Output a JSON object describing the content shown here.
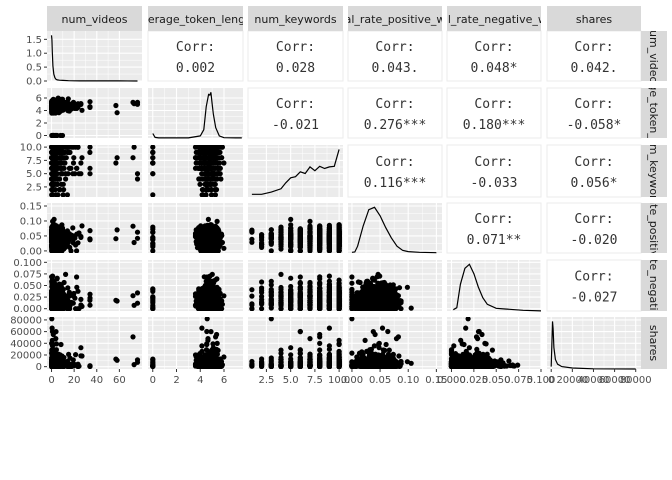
{
  "chart_data": {
    "type": "scatter-matrix",
    "variables": [
      "num_videos",
      "average_token_length",
      "num_keywords",
      "global_rate_positive_words",
      "global_rate_negative_words",
      "shares"
    ],
    "strip_labels": [
      "num_videos",
      "average_token_length",
      "num_keywords",
      "global_rate_positive_words",
      "global_rate_negative_words",
      "shares"
    ],
    "colors": {
      "panel": "#ebebeb",
      "grid": "#ffffff",
      "strip": "#d9d9d9",
      "points": "#000000",
      "text": "#1a1a1a",
      "axis_text": "#4d4d4d"
    },
    "correlations": [
      {
        "row": 0,
        "col": 1,
        "label": "Corr:",
        "value": "0.002"
      },
      {
        "row": 0,
        "col": 2,
        "label": "Corr:",
        "value": "0.028"
      },
      {
        "row": 0,
        "col": 3,
        "label": "Corr:",
        "value": "0.043."
      },
      {
        "row": 0,
        "col": 4,
        "label": "Corr:",
        "value": "0.048*"
      },
      {
        "row": 0,
        "col": 5,
        "label": "Corr:",
        "value": "0.042."
      },
      {
        "row": 1,
        "col": 2,
        "label": "Corr:",
        "value": "-0.021"
      },
      {
        "row": 1,
        "col": 3,
        "label": "Corr:",
        "value": "0.276***"
      },
      {
        "row": 1,
        "col": 4,
        "label": "Corr:",
        "value": "0.180***"
      },
      {
        "row": 1,
        "col": 5,
        "label": "Corr:",
        "value": "-0.058*"
      },
      {
        "row": 2,
        "col": 3,
        "label": "Corr:",
        "value": "0.116***"
      },
      {
        "row": 2,
        "col": 4,
        "label": "Corr:",
        "value": "-0.033"
      },
      {
        "row": 2,
        "col": 5,
        "label": "Corr:",
        "value": "0.056*"
      },
      {
        "row": 3,
        "col": 4,
        "label": "Corr:",
        "value": "0.071**"
      },
      {
        "row": 3,
        "col": 5,
        "label": "Corr:",
        "value": "-0.020"
      },
      {
        "row": 4,
        "col": 5,
        "label": "Corr:",
        "value": "-0.027"
      }
    ],
    "x_axes": [
      {
        "range": [
          -4,
          80
        ],
        "ticks": [
          0,
          20,
          40,
          60
        ],
        "tick_labels": [
          "0",
          "20",
          "40",
          "60"
        ]
      },
      {
        "range": [
          -0.4,
          7.6
        ],
        "ticks": [
          0,
          2,
          4,
          6
        ],
        "tick_labels": [
          "0",
          "2",
          "4",
          "6"
        ]
      },
      {
        "range": [
          0.6,
          10.4
        ],
        "ticks": [
          2.5,
          5.0,
          7.5,
          10.0
        ],
        "tick_labels": [
          "2.5",
          "5.0",
          "7.5",
          "10.0"
        ]
      },
      {
        "range": [
          -0.007,
          0.16
        ],
        "ticks": [
          0.0,
          0.05,
          0.1,
          0.15
        ],
        "tick_labels": [
          "0.00",
          "0.05",
          "0.10",
          "0.15"
        ]
      },
      {
        "range": [
          -0.005,
          0.1
        ],
        "ticks": [
          0.0,
          0.025,
          0.05,
          0.075,
          0.1
        ],
        "tick_labels": [
          "0.000",
          "0.025",
          "0.050",
          "0.075",
          "0.100"
        ]
      },
      {
        "range": [
          -4000,
          85000
        ],
        "ticks": [
          0,
          20000,
          40000,
          60000,
          80000
        ],
        "tick_labels": [
          "0",
          "20000",
          "40000",
          "60000",
          "80000"
        ]
      }
    ],
    "y_axes": [
      {
        "range": [
          0,
          1.8
        ],
        "ticks": [
          0.0,
          0.5,
          1.0,
          1.5
        ],
        "tick_labels": [
          "0.0",
          "0.5",
          "1.0",
          "1.5"
        ]
      },
      {
        "range": [
          -0.4,
          7.6
        ],
        "ticks": [
          0,
          2,
          4,
          6
        ],
        "tick_labels": [
          "0",
          "2",
          "4",
          "6"
        ]
      },
      {
        "range": [
          0.6,
          10.4
        ],
        "ticks": [
          2.5,
          5.0,
          7.5,
          10.0
        ],
        "tick_labels": [
          "2.5",
          "5.0",
          "7.5",
          "10.0"
        ]
      },
      {
        "range": [
          -0.007,
          0.16
        ],
        "ticks": [
          0.0,
          0.05,
          0.1,
          0.15
        ],
        "tick_labels": [
          "0.00",
          "0.05",
          "0.10",
          "0.15"
        ]
      },
      {
        "range": [
          -0.005,
          0.105
        ],
        "ticks": [
          0.0,
          0.025,
          0.05,
          0.075,
          0.1
        ],
        "tick_labels": [
          "0.000",
          "0.025",
          "0.050",
          "0.075",
          "0.100"
        ]
      },
      {
        "range": [
          -4000,
          85000
        ],
        "ticks": [
          0,
          20000,
          40000,
          60000,
          80000
        ],
        "tick_labels": [
          "0",
          "20000",
          "40000",
          "60000",
          "80000"
        ]
      }
    ],
    "densities": [
      {
        "x": [
          0,
          0.3,
          0.7,
          1.2,
          2,
          3,
          4,
          5,
          7,
          10,
          15,
          25,
          40,
          60,
          76
        ],
        "y": [
          1.65,
          1.5,
          1.05,
          0.55,
          0.25,
          0.12,
          0.06,
          0.04,
          0.03,
          0.02,
          0.01,
          0.005,
          0.003,
          0.002,
          0
        ]
      },
      {
        "x": [
          0,
          0.2,
          0.5,
          1,
          2,
          3,
          4,
          4.3,
          4.5,
          4.7,
          4.8,
          4.9,
          5.0,
          5.1,
          5.3,
          5.6,
          6,
          7,
          7.5
        ],
        "y": [
          0.65,
          0.08,
          0.02,
          0.01,
          0.01,
          0.01,
          0.3,
          1.2,
          4.5,
          6.3,
          6.2,
          6.6,
          5.0,
          3.5,
          1.5,
          0.3,
          0.05,
          0.01,
          0.01
        ]
      },
      {
        "x": [
          1,
          2,
          3,
          4,
          4.5,
          5,
          5.5,
          6,
          6.5,
          7,
          7.5,
          8,
          8.5,
          9,
          9.5,
          10
        ],
        "y": [
          0.5,
          0.5,
          0.9,
          1.5,
          2.6,
          3.5,
          3.7,
          4.6,
          4.3,
          5.5,
          4.8,
          5.6,
          5.2,
          5.5,
          5.6,
          8.7
        ]
      },
      {
        "x": [
          0,
          0.005,
          0.01,
          0.02,
          0.03,
          0.04,
          0.05,
          0.06,
          0.07,
          0.08,
          0.09,
          0.1,
          0.12,
          0.15
        ],
        "y": [
          0.2,
          0.3,
          2.0,
          8.0,
          12.8,
          13.5,
          11.0,
          7.5,
          4.5,
          2.0,
          0.8,
          0.4,
          0.2,
          0.1
        ]
      },
      {
        "x": [
          0.002,
          0.006,
          0.01,
          0.015,
          0.02,
          0.025,
          0.03,
          0.035,
          0.04,
          0.05,
          0.06,
          0.08,
          0.1
        ],
        "y": [
          1.0,
          2.5,
          20,
          32,
          35,
          28,
          18,
          10,
          5,
          2,
          1.5,
          0.5,
          0.1
        ]
      },
      {
        "x": [
          0,
          600,
          1200,
          1800,
          2500,
          4000,
          6000,
          10000,
          20000,
          40000,
          80000
        ],
        "y": [
          0.05,
          0.55,
          1.0,
          0.85,
          0.45,
          0.2,
          0.1,
          0.05,
          0.02,
          0.005,
          0
        ]
      }
    ],
    "scatter_profiles": [
      {
        "kind": "skew",
        "scale": 2.5,
        "max": 76,
        "outliers": [
          72,
          73,
          75,
          76,
          58,
          34,
          26,
          21,
          18
        ]
      },
      {
        "kind": "bimodal",
        "mean": 4.75,
        "sd": 0.45,
        "zero_frac": 0.03,
        "min": 3.6,
        "max": 7.2
      },
      {
        "kind": "discrete",
        "values": [
          1,
          2,
          3,
          4,
          5,
          6,
          7,
          8,
          9,
          10
        ],
        "weights": [
          0.2,
          0.4,
          0.8,
          1.5,
          2.6,
          3.5,
          4.3,
          5.2,
          5.5,
          8.7
        ]
      },
      {
        "kind": "normal",
        "mean": 0.042,
        "sd": 0.018,
        "min": 0.0,
        "max": 0.155,
        "zero_frac": 0.02
      },
      {
        "kind": "skewnormal",
        "mean": 0.018,
        "sd": 0.011,
        "min": 0.0,
        "max": 0.092,
        "zero_frac": 0.03
      },
      {
        "kind": "skew",
        "scale": 3500,
        "max": 85000,
        "outliers": [
          82000,
          80000,
          69000,
          66000,
          60000,
          55000,
          52000,
          48000,
          43000,
          39000,
          37000,
          34000,
          31000,
          29000
        ]
      }
    ]
  }
}
